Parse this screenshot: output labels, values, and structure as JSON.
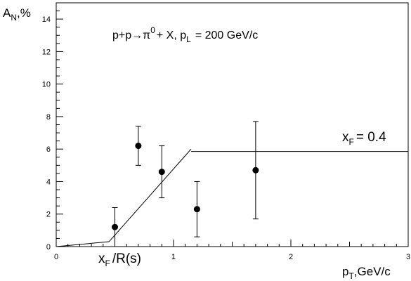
{
  "chart_data": {
    "type": "scatter",
    "title": "",
    "annotations": {
      "reaction": {
        "lhs": "p+p",
        "arrow": "→",
        "pi": "π",
        "pi_sup": "0",
        "rest": "+ X, p",
        "p_sub": "L",
        "energy": "= 200 GeV/c"
      },
      "xf_label": {
        "main": "x",
        "sub": "F",
        "rest": "= 0.4"
      },
      "kink_label": {
        "main": "x",
        "sub": "F",
        "rest": "/R(s)"
      }
    },
    "xlabel": {
      "main": "p",
      "sub": "T",
      "rest": ",GeV/c"
    },
    "ylabel": {
      "main": "A",
      "sub": "N",
      "rest": ",%"
    },
    "xlim": [
      0,
      3
    ],
    "ylim": [
      0,
      15
    ],
    "x_ticks": [
      0,
      1,
      2,
      3
    ],
    "y_ticks": [
      0,
      2,
      4,
      6,
      8,
      10,
      12,
      14
    ],
    "x_minor_step": 0.1,
    "y_minor_step": 0.5,
    "grid": false,
    "series": [
      {
        "type": "points_with_errors",
        "points": [
          {
            "x": 0.5,
            "y": 1.2,
            "ylow": 0.0,
            "yhigh": 2.4
          },
          {
            "x": 0.7,
            "y": 6.2,
            "ylow": 5.0,
            "yhigh": 7.4
          },
          {
            "x": 0.9,
            "y": 4.6,
            "ylow": 3.0,
            "yhigh": 6.2
          },
          {
            "x": 1.2,
            "y": 2.3,
            "ylow": 0.6,
            "yhigh": 4.0
          },
          {
            "x": 1.7,
            "y": 4.7,
            "ylow": 1.7,
            "yhigh": 7.7
          }
        ]
      },
      {
        "type": "model_line",
        "segments": [
          [
            [
              0,
              0
            ],
            [
              0.45,
              0.3
            ]
          ],
          [
            [
              0.45,
              0.3
            ],
            [
              1.15,
              6.0
            ]
          ],
          [
            [
              1.15,
              5.85
            ],
            [
              3,
              5.85
            ]
          ]
        ]
      }
    ]
  }
}
